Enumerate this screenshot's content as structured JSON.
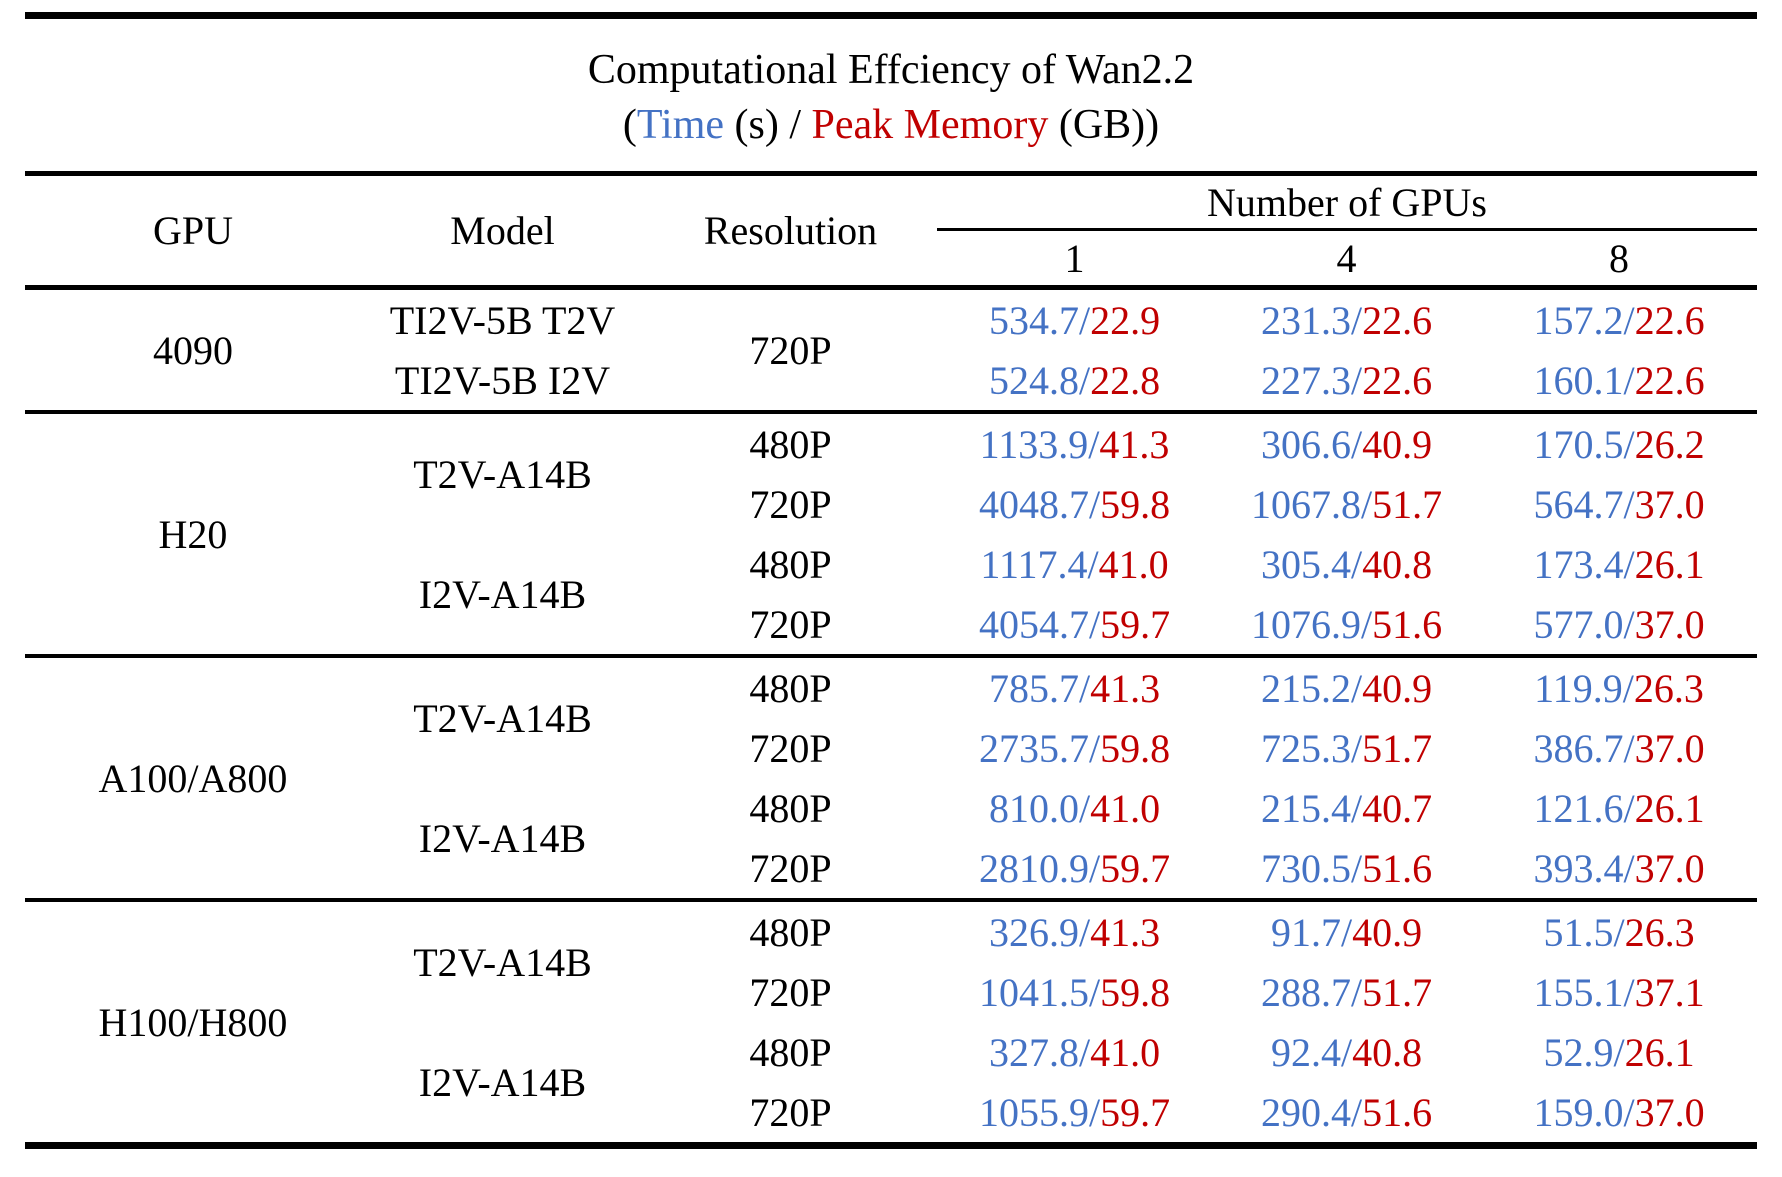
{
  "page": {
    "title_line1": "Computational Effciency of Wan2.2",
    "subtitle": {
      "open": "(",
      "time_label": "Time",
      "time_unit": " (s) / ",
      "memory_label": "Peak Memory",
      "memory_unit": " (GB))"
    }
  },
  "colors": {
    "time_blue": "#4472C4",
    "memory_red": "#C00000",
    "rule_black": "#000000"
  },
  "table": {
    "headers": {
      "gpu": "GPU",
      "model": "Model",
      "resolution": "Resolution",
      "group": "Number of GPUs",
      "counts": [
        "1",
        "4",
        "8"
      ]
    },
    "layout_rows": [
      {
        "section_start": false,
        "cells": [
          {
            "kind": "label",
            "name": "gpu-name-cell",
            "text": "4090",
            "rs": 2
          },
          {
            "kind": "label",
            "name": "model-name-cell",
            "text": "TI2V-5B T2V",
            "rs": 1
          },
          {
            "kind": "label",
            "name": "resolution-cell",
            "text": "720P",
            "rs": 2
          },
          {
            "kind": "value",
            "time": "534.7",
            "mem": "22.9"
          },
          {
            "kind": "value",
            "time": "231.3",
            "mem": "22.6"
          },
          {
            "kind": "value",
            "time": "157.2",
            "mem": "22.6"
          }
        ]
      },
      {
        "section_start": false,
        "cells": [
          {
            "kind": "label",
            "name": "model-name-cell",
            "text": "TI2V-5B I2V",
            "rs": 1
          },
          {
            "kind": "value",
            "time": "524.8",
            "mem": "22.8"
          },
          {
            "kind": "value",
            "time": "227.3",
            "mem": "22.6"
          },
          {
            "kind": "value",
            "time": "160.1",
            "mem": "22.6"
          }
        ]
      },
      {
        "section_start": true,
        "cells": [
          {
            "kind": "label",
            "name": "gpu-name-cell",
            "text": "H20",
            "rs": 4
          },
          {
            "kind": "label",
            "name": "model-name-cell",
            "text": "T2V-A14B",
            "rs": 2
          },
          {
            "kind": "label",
            "name": "resolution-cell",
            "text": "480P",
            "rs": 1
          },
          {
            "kind": "value",
            "time": "1133.9",
            "mem": "41.3"
          },
          {
            "kind": "value",
            "time": "306.6",
            "mem": "40.9"
          },
          {
            "kind": "value",
            "time": "170.5",
            "mem": "26.2"
          }
        ]
      },
      {
        "section_start": false,
        "cells": [
          {
            "kind": "label",
            "name": "resolution-cell",
            "text": "720P",
            "rs": 1
          },
          {
            "kind": "value",
            "time": "4048.7",
            "mem": "59.8"
          },
          {
            "kind": "value",
            "time": "1067.8",
            "mem": "51.7"
          },
          {
            "kind": "value",
            "time": "564.7",
            "mem": "37.0"
          }
        ]
      },
      {
        "section_start": false,
        "cells": [
          {
            "kind": "label",
            "name": "model-name-cell",
            "text": "I2V-A14B",
            "rs": 2
          },
          {
            "kind": "label",
            "name": "resolution-cell",
            "text": "480P",
            "rs": 1
          },
          {
            "kind": "value",
            "time": "1117.4",
            "mem": "41.0"
          },
          {
            "kind": "value",
            "time": "305.4",
            "mem": "40.8"
          },
          {
            "kind": "value",
            "time": "173.4",
            "mem": "26.1"
          }
        ]
      },
      {
        "section_start": false,
        "cells": [
          {
            "kind": "label",
            "name": "resolution-cell",
            "text": "720P",
            "rs": 1
          },
          {
            "kind": "value",
            "time": "4054.7",
            "mem": "59.7"
          },
          {
            "kind": "value",
            "time": "1076.9",
            "mem": "51.6"
          },
          {
            "kind": "value",
            "time": "577.0",
            "mem": "37.0"
          }
        ]
      },
      {
        "section_start": true,
        "cells": [
          {
            "kind": "label",
            "name": "gpu-name-cell",
            "text": "A100/A800",
            "rs": 4
          },
          {
            "kind": "label",
            "name": "model-name-cell",
            "text": "T2V-A14B",
            "rs": 2
          },
          {
            "kind": "label",
            "name": "resolution-cell",
            "text": "480P",
            "rs": 1
          },
          {
            "kind": "value",
            "time": "785.7",
            "mem": "41.3"
          },
          {
            "kind": "value",
            "time": "215.2",
            "mem": "40.9"
          },
          {
            "kind": "value",
            "time": "119.9",
            "mem": "26.3"
          }
        ]
      },
      {
        "section_start": false,
        "cells": [
          {
            "kind": "label",
            "name": "resolution-cell",
            "text": "720P",
            "rs": 1
          },
          {
            "kind": "value",
            "time": "2735.7",
            "mem": "59.8"
          },
          {
            "kind": "value",
            "time": "725.3",
            "mem": "51.7"
          },
          {
            "kind": "value",
            "time": "386.7",
            "mem": "37.0"
          }
        ]
      },
      {
        "section_start": false,
        "cells": [
          {
            "kind": "label",
            "name": "model-name-cell",
            "text": "I2V-A14B",
            "rs": 2
          },
          {
            "kind": "label",
            "name": "resolution-cell",
            "text": "480P",
            "rs": 1
          },
          {
            "kind": "value",
            "time": "810.0",
            "mem": "41.0"
          },
          {
            "kind": "value",
            "time": "215.4",
            "mem": "40.7"
          },
          {
            "kind": "value",
            "time": "121.6",
            "mem": "26.1"
          }
        ]
      },
      {
        "section_start": false,
        "cells": [
          {
            "kind": "label",
            "name": "resolution-cell",
            "text": "720P",
            "rs": 1
          },
          {
            "kind": "value",
            "time": "2810.9",
            "mem": "59.7"
          },
          {
            "kind": "value",
            "time": "730.5",
            "mem": "51.6"
          },
          {
            "kind": "value",
            "time": "393.4",
            "mem": "37.0"
          }
        ]
      },
      {
        "section_start": true,
        "cells": [
          {
            "kind": "label",
            "name": "gpu-name-cell",
            "text": "H100/H800",
            "rs": 4
          },
          {
            "kind": "label",
            "name": "model-name-cell",
            "text": "T2V-A14B",
            "rs": 2
          },
          {
            "kind": "label",
            "name": "resolution-cell",
            "text": "480P",
            "rs": 1
          },
          {
            "kind": "value",
            "time": "326.9",
            "mem": "41.3"
          },
          {
            "kind": "value",
            "time": "91.7",
            "mem": "40.9"
          },
          {
            "kind": "value",
            "time": "51.5",
            "mem": "26.3"
          }
        ]
      },
      {
        "section_start": false,
        "cells": [
          {
            "kind": "label",
            "name": "resolution-cell",
            "text": "720P",
            "rs": 1
          },
          {
            "kind": "value",
            "time": "1041.5",
            "mem": "59.8"
          },
          {
            "kind": "value",
            "time": "288.7",
            "mem": "51.7"
          },
          {
            "kind": "value",
            "time": "155.1",
            "mem": "37.1"
          }
        ]
      },
      {
        "section_start": false,
        "cells": [
          {
            "kind": "label",
            "name": "model-name-cell",
            "text": "I2V-A14B",
            "rs": 2
          },
          {
            "kind": "label",
            "name": "resolution-cell",
            "text": "480P",
            "rs": 1
          },
          {
            "kind": "value",
            "time": "327.8",
            "mem": "41.0"
          },
          {
            "kind": "value",
            "time": "92.4",
            "mem": "40.8"
          },
          {
            "kind": "value",
            "time": "52.9",
            "mem": "26.1"
          }
        ]
      },
      {
        "section_start": false,
        "cells": [
          {
            "kind": "label",
            "name": "resolution-cell",
            "text": "720P",
            "rs": 1
          },
          {
            "kind": "value",
            "time": "1055.9",
            "mem": "59.7"
          },
          {
            "kind": "value",
            "time": "290.4",
            "mem": "51.6"
          },
          {
            "kind": "value",
            "time": "159.0",
            "mem": "37.0"
          }
        ]
      }
    ]
  },
  "chart_data": {
    "type": "table",
    "title": "Computational Effciency of Wan2.2 (Time (s) / Peak Memory (GB))",
    "columns": [
      "GPU",
      "Model",
      "Resolution",
      "1 GPU",
      "4 GPUs",
      "8 GPUs"
    ],
    "cell_format": "time_s / peak_memory_gb",
    "legend": {
      "time_s_color": "#4472C4",
      "peak_memory_gb_color": "#C00000"
    },
    "rows": [
      {
        "gpu": "4090",
        "model": "TI2V-5B T2V",
        "resolution": "720P",
        "gpus_1": {
          "time_s": 534.7,
          "mem_gb": 22.9
        },
        "gpus_4": {
          "time_s": 231.3,
          "mem_gb": 22.6
        },
        "gpus_8": {
          "time_s": 157.2,
          "mem_gb": 22.6
        }
      },
      {
        "gpu": "4090",
        "model": "TI2V-5B I2V",
        "resolution": "720P",
        "gpus_1": {
          "time_s": 524.8,
          "mem_gb": 22.8
        },
        "gpus_4": {
          "time_s": 227.3,
          "mem_gb": 22.6
        },
        "gpus_8": {
          "time_s": 160.1,
          "mem_gb": 22.6
        }
      },
      {
        "gpu": "H20",
        "model": "T2V-A14B",
        "resolution": "480P",
        "gpus_1": {
          "time_s": 1133.9,
          "mem_gb": 41.3
        },
        "gpus_4": {
          "time_s": 306.6,
          "mem_gb": 40.9
        },
        "gpus_8": {
          "time_s": 170.5,
          "mem_gb": 26.2
        }
      },
      {
        "gpu": "H20",
        "model": "T2V-A14B",
        "resolution": "720P",
        "gpus_1": {
          "time_s": 4048.7,
          "mem_gb": 59.8
        },
        "gpus_4": {
          "time_s": 1067.8,
          "mem_gb": 51.7
        },
        "gpus_8": {
          "time_s": 564.7,
          "mem_gb": 37.0
        }
      },
      {
        "gpu": "H20",
        "model": "I2V-A14B",
        "resolution": "480P",
        "gpus_1": {
          "time_s": 1117.4,
          "mem_gb": 41.0
        },
        "gpus_4": {
          "time_s": 305.4,
          "mem_gb": 40.8
        },
        "gpus_8": {
          "time_s": 173.4,
          "mem_gb": 26.1
        }
      },
      {
        "gpu": "H20",
        "model": "I2V-A14B",
        "resolution": "720P",
        "gpus_1": {
          "time_s": 4054.7,
          "mem_gb": 59.7
        },
        "gpus_4": {
          "time_s": 1076.9,
          "mem_gb": 51.6
        },
        "gpus_8": {
          "time_s": 577.0,
          "mem_gb": 37.0
        }
      },
      {
        "gpu": "A100/A800",
        "model": "T2V-A14B",
        "resolution": "480P",
        "gpus_1": {
          "time_s": 785.7,
          "mem_gb": 41.3
        },
        "gpus_4": {
          "time_s": 215.2,
          "mem_gb": 40.9
        },
        "gpus_8": {
          "time_s": 119.9,
          "mem_gb": 26.3
        }
      },
      {
        "gpu": "A100/A800",
        "model": "T2V-A14B",
        "resolution": "720P",
        "gpus_1": {
          "time_s": 2735.7,
          "mem_gb": 59.8
        },
        "gpus_4": {
          "time_s": 725.3,
          "mem_gb": 51.7
        },
        "gpus_8": {
          "time_s": 386.7,
          "mem_gb": 37.0
        }
      },
      {
        "gpu": "A100/A800",
        "model": "I2V-A14B",
        "resolution": "480P",
        "gpus_1": {
          "time_s": 810.0,
          "mem_gb": 41.0
        },
        "gpus_4": {
          "time_s": 215.4,
          "mem_gb": 40.7
        },
        "gpus_8": {
          "time_s": 121.6,
          "mem_gb": 26.1
        }
      },
      {
        "gpu": "A100/A800",
        "model": "I2V-A14B",
        "resolution": "720P",
        "gpus_1": {
          "time_s": 2810.9,
          "mem_gb": 59.7
        },
        "gpus_4": {
          "time_s": 730.5,
          "mem_gb": 51.6
        },
        "gpus_8": {
          "time_s": 393.4,
          "mem_gb": 37.0
        }
      },
      {
        "gpu": "H100/H800",
        "model": "T2V-A14B",
        "resolution": "480P",
        "gpus_1": {
          "time_s": 326.9,
          "mem_gb": 41.3
        },
        "gpus_4": {
          "time_s": 91.7,
          "mem_gb": 40.9
        },
        "gpus_8": {
          "time_s": 51.5,
          "mem_gb": 26.3
        }
      },
      {
        "gpu": "H100/H800",
        "model": "T2V-A14B",
        "resolution": "720P",
        "gpus_1": {
          "time_s": 1041.5,
          "mem_gb": 59.8
        },
        "gpus_4": {
          "time_s": 288.7,
          "mem_gb": 51.7
        },
        "gpus_8": {
          "time_s": 155.1,
          "mem_gb": 37.1
        }
      },
      {
        "gpu": "H100/H800",
        "model": "I2V-A14B",
        "resolution": "480P",
        "gpus_1": {
          "time_s": 327.8,
          "mem_gb": 41.0
        },
        "gpus_4": {
          "time_s": 92.4,
          "mem_gb": 40.8
        },
        "gpus_8": {
          "time_s": 52.9,
          "mem_gb": 26.1
        }
      },
      {
        "gpu": "H100/H800",
        "model": "I2V-A14B",
        "resolution": "720P",
        "gpus_1": {
          "time_s": 1055.9,
          "mem_gb": 59.7
        },
        "gpus_4": {
          "time_s": 290.4,
          "mem_gb": 51.6
        },
        "gpus_8": {
          "time_s": 159.0,
          "mem_gb": 37.0
        }
      }
    ]
  }
}
